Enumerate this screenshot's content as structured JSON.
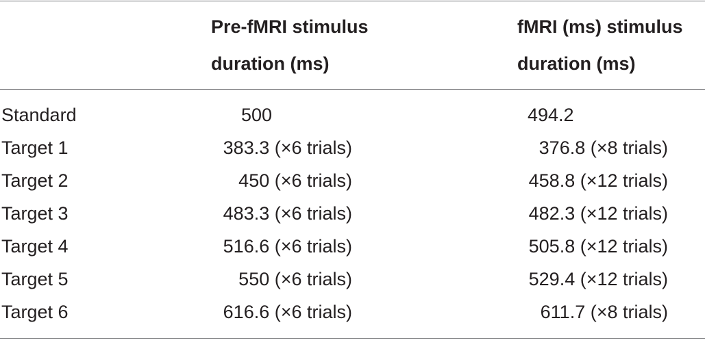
{
  "table": {
    "headers": {
      "pre_fmri": [
        "Pre-fMRI stimulus",
        "duration (ms)"
      ],
      "fmri": [
        "fMRI (ms) stimulus",
        "duration (ms)"
      ]
    },
    "rows": [
      {
        "label": "Standard",
        "pre": "500",
        "fmri": "494.2"
      },
      {
        "label": "Target 1",
        "pre": "383.3 (×6 trials)",
        "fmri": "376.8 (×8 trials)"
      },
      {
        "label": "Target 2",
        "pre": "450 (×6 trials)",
        "fmri": "458.8 (×12 trials)"
      },
      {
        "label": "Target 3",
        "pre": "483.3 (×6 trials)",
        "fmri": "482.3 (×12 trials)"
      },
      {
        "label": "Target 4",
        "pre": "516.6 (×6 trials)",
        "fmri": "505.8 (×12 trials)"
      },
      {
        "label": "Target 5",
        "pre": "550 (×6 trials)",
        "fmri": "529.4 (×12 trials)"
      },
      {
        "label": "Target 6",
        "pre": "616.6 (×6 trials)",
        "fmri": "611.7 (×8 trials)"
      }
    ]
  }
}
